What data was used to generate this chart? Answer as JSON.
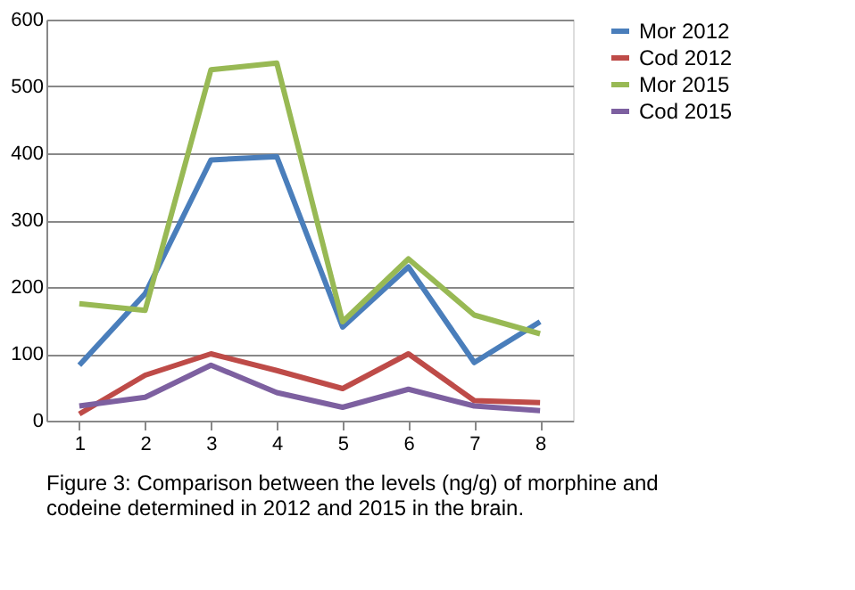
{
  "chart_data": {
    "type": "line",
    "categories": [
      "1",
      "2",
      "3",
      "4",
      "5",
      "6",
      "7",
      "8"
    ],
    "series": [
      {
        "name": "Mor 2012",
        "color": "#4a7ebb",
        "values": [
          83,
          190,
          390,
          395,
          140,
          230,
          87,
          148
        ]
      },
      {
        "name": "Cod 2012",
        "color": "#be4b48",
        "values": [
          10,
          68,
          100,
          75,
          48,
          100,
          30,
          27
        ]
      },
      {
        "name": "Mor 2015",
        "color": "#98b954",
        "values": [
          175,
          165,
          525,
          535,
          148,
          242,
          158,
          130
        ]
      },
      {
        "name": "Cod 2015",
        "color": "#7d60a0",
        "values": [
          22,
          35,
          83,
          42,
          20,
          47,
          22,
          15
        ]
      }
    ],
    "ylim": [
      0,
      600
    ],
    "yticks": [
      0,
      100,
      200,
      300,
      400,
      500,
      600
    ],
    "grid": "y",
    "legend": "right",
    "marker": "none",
    "line_style": "solid",
    "annotations": [
      "Figure 3: Comparison between the levels (ng/g) of morphine and codeine determined in 2012 and 2015 in the brain."
    ]
  }
}
